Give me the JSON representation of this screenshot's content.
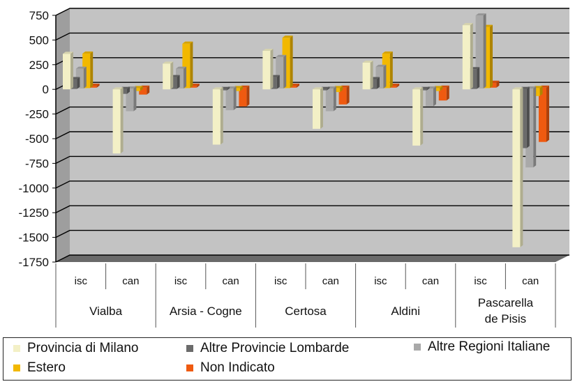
{
  "chart_data": {
    "type": "bar",
    "groups": [
      {
        "label": "Vialba",
        "subcategories": [
          "isc",
          "can"
        ]
      },
      {
        "label": "Arsia - Cogne",
        "subcategories": [
          "isc",
          "can"
        ]
      },
      {
        "label": "Certosa",
        "subcategories": [
          "isc",
          "can"
        ]
      },
      {
        "label": "Aldini",
        "subcategories": [
          "isc",
          "can"
        ]
      },
      {
        "label": "Pascarella de Pisis",
        "subcategories": [
          "isc",
          "can"
        ]
      }
    ],
    "categories": [
      "Vialba isc",
      "Vialba can",
      "Arsia - Cogne isc",
      "Arsia - Cogne can",
      "Certosa isc",
      "Certosa can",
      "Aldini isc",
      "Aldini can",
      "Pascarella de Pisis isc",
      "Pascarella de Pisis can"
    ],
    "series": [
      {
        "name": "Provincia di Milano",
        "color": "#f3f0c6",
        "values": [
          360,
          -650,
          260,
          -560,
          390,
          -400,
          270,
          -570,
          650,
          -1600
        ]
      },
      {
        "name": "Altre Provincie Lombarde",
        "color": "#6b6b6b",
        "values": [
          100,
          -50,
          120,
          -10,
          120,
          -10,
          100,
          -10,
          200,
          -600
        ]
      },
      {
        "name": "Altre Regioni Italiane",
        "color": "#a9a9a9",
        "values": [
          200,
          -230,
          200,
          -220,
          320,
          -230,
          220,
          -180,
          740,
          -800
        ]
      },
      {
        "name": "Estero",
        "color": "#f2b800",
        "values": [
          350,
          -30,
          450,
          -30,
          510,
          -40,
          350,
          -30,
          620,
          -80
        ]
      },
      {
        "name": "Non Indicato",
        "color": "#ef5a10",
        "values": [
          20,
          -70,
          20,
          -190,
          20,
          -170,
          20,
          -130,
          50,
          -550
        ]
      }
    ],
    "y_ticks": [
      "750",
      "500",
      "250",
      "0",
      "-250",
      "-500",
      "-750",
      "-1000",
      "-1250",
      "-1500",
      "-1750"
    ],
    "ylim": [
      -1750,
      750
    ],
    "grid": true,
    "legend_position": "bottom"
  }
}
